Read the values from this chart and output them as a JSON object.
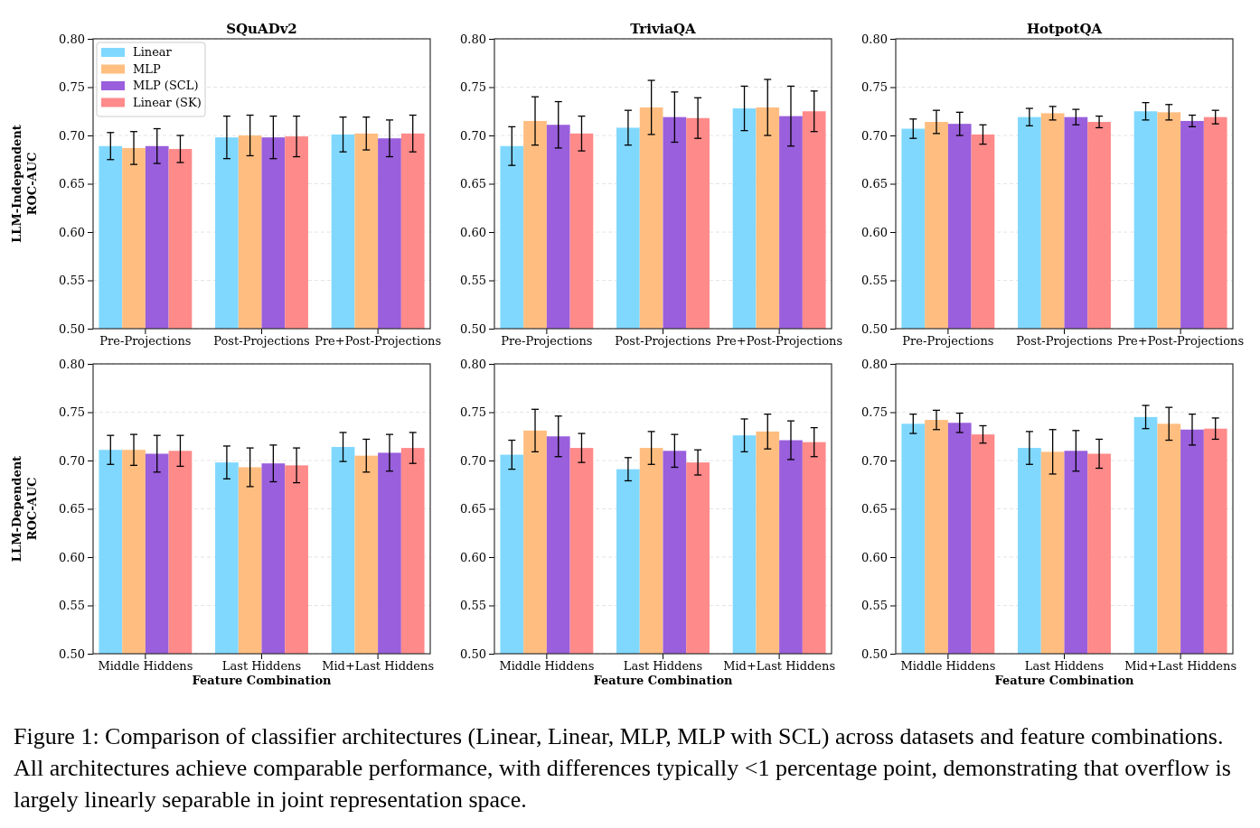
{
  "chart_data": [
    {
      "type": "bar",
      "title": "SQuADv2",
      "ylabel": "LLM-Independent\nROC-AUC",
      "categories": [
        "Pre-Projections",
        "Post-Projections",
        "Pre+Post-Projections"
      ],
      "ylim": [
        0.5,
        0.8
      ],
      "yticks": [
        {
          "value": 0.5,
          "label": "0.50"
        },
        {
          "value": 0.55,
          "label": "0.55"
        },
        {
          "value": 0.6,
          "label": "0.60"
        },
        {
          "value": 0.65,
          "label": "0.65"
        },
        {
          "value": 0.7,
          "label": "0.70"
        },
        {
          "value": 0.75,
          "label": "0.75"
        },
        {
          "value": 0.8,
          "label": "0.80"
        }
      ],
      "grid": "y",
      "legend": "top left",
      "series": [
        {
          "name": "Linear",
          "color": "#80d8ff",
          "values": [
            0.689,
            0.698,
            0.701
          ],
          "errors": [
            0.014,
            0.022,
            0.018
          ]
        },
        {
          "name": "MLP",
          "color": "#ffbe80",
          "values": [
            0.687,
            0.7,
            0.702
          ],
          "errors": [
            0.017,
            0.021,
            0.017
          ]
        },
        {
          "name": "MLP (SCL)",
          "color": "#9a5fdc",
          "values": [
            0.689,
            0.698,
            0.697
          ],
          "errors": [
            0.018,
            0.022,
            0.019
          ]
        },
        {
          "name": "Linear (SK)",
          "color": "#ff8a8a",
          "values": [
            0.686,
            0.699,
            0.702
          ],
          "errors": [
            0.014,
            0.021,
            0.019
          ]
        }
      ],
      "annotations": [
        "Figure 1: Comparison of classifier architectures (Linear, Linear, MLP, MLP with SCL) across datasets and feature combinations. All architectures achieve comparable performance, with differences typically <1 percentage point, demonstrating that overflow is largely linearly separable in joint representation space."
      ]
    },
    {
      "type": "bar",
      "title": "TriviaQA",
      "categories": [
        "Pre-Projections",
        "Post-Projections",
        "Pre+Post-Projections"
      ],
      "ylim": [
        0.5,
        0.8
      ],
      "yticks": [
        {
          "value": 0.5,
          "label": "0.50"
        },
        {
          "value": 0.55,
          "label": "0.55"
        },
        {
          "value": 0.6,
          "label": "0.60"
        },
        {
          "value": 0.65,
          "label": "0.65"
        },
        {
          "value": 0.7,
          "label": "0.70"
        },
        {
          "value": 0.75,
          "label": "0.75"
        },
        {
          "value": 0.8,
          "label": "0.80"
        }
      ],
      "grid": "y",
      "series": [
        {
          "color": "#80d8ff",
          "values": [
            0.689,
            0.708,
            0.728
          ],
          "errors": [
            0.02,
            0.018,
            0.023
          ]
        },
        {
          "color": "#ffbe80",
          "values": [
            0.715,
            0.729,
            0.729
          ],
          "errors": [
            0.025,
            0.028,
            0.029
          ]
        },
        {
          "color": "#9a5fdc",
          "values": [
            0.711,
            0.719,
            0.72
          ],
          "errors": [
            0.024,
            0.026,
            0.031
          ]
        },
        {
          "color": "#ff8a8a",
          "values": [
            0.702,
            0.718,
            0.725
          ],
          "errors": [
            0.018,
            0.021,
            0.021
          ]
        }
      ]
    },
    {
      "type": "bar",
      "title": "HotpotQA",
      "categories": [
        "Pre-Projections",
        "Post-Projections",
        "Pre+Post-Projections"
      ],
      "ylim": [
        0.5,
        0.8
      ],
      "yticks": [
        {
          "value": 0.5,
          "label": "0.50"
        },
        {
          "value": 0.55,
          "label": "0.55"
        },
        {
          "value": 0.6,
          "label": "0.60"
        },
        {
          "value": 0.65,
          "label": "0.65"
        },
        {
          "value": 0.7,
          "label": "0.70"
        },
        {
          "value": 0.75,
          "label": "0.75"
        },
        {
          "value": 0.8,
          "label": "0.80"
        }
      ],
      "grid": "y",
      "series": [
        {
          "color": "#80d8ff",
          "values": [
            0.707,
            0.719,
            0.725
          ],
          "errors": [
            0.01,
            0.009,
            0.009
          ]
        },
        {
          "color": "#ffbe80",
          "values": [
            0.714,
            0.723,
            0.724
          ],
          "errors": [
            0.012,
            0.007,
            0.008
          ]
        },
        {
          "color": "#9a5fdc",
          "values": [
            0.712,
            0.719,
            0.715
          ],
          "errors": [
            0.012,
            0.008,
            0.006
          ]
        },
        {
          "color": "#ff8a8a",
          "values": [
            0.701,
            0.714,
            0.719
          ],
          "errors": [
            0.01,
            0.006,
            0.007
          ]
        }
      ]
    },
    {
      "type": "bar",
      "ylabel": "LLM-Dependent\nROC-AUC",
      "xlabel": "Feature Combination",
      "categories": [
        "Middle Hiddens",
        "Last Hiddens",
        "Mid+Last Hiddens"
      ],
      "ylim": [
        0.5,
        0.8
      ],
      "yticks": [
        {
          "value": 0.5,
          "label": "0.50"
        },
        {
          "value": 0.55,
          "label": "0.55"
        },
        {
          "value": 0.6,
          "label": "0.60"
        },
        {
          "value": 0.65,
          "label": "0.65"
        },
        {
          "value": 0.7,
          "label": "0.70"
        },
        {
          "value": 0.75,
          "label": "0.75"
        },
        {
          "value": 0.8,
          "label": "0.80"
        }
      ],
      "grid": "y",
      "series": [
        {
          "color": "#80d8ff",
          "values": [
            0.711,
            0.698,
            0.714
          ],
          "errors": [
            0.015,
            0.017,
            0.015
          ]
        },
        {
          "color": "#ffbe80",
          "values": [
            0.711,
            0.693,
            0.705
          ],
          "errors": [
            0.016,
            0.02,
            0.017
          ]
        },
        {
          "color": "#9a5fdc",
          "values": [
            0.707,
            0.697,
            0.708
          ],
          "errors": [
            0.019,
            0.019,
            0.019
          ]
        },
        {
          "color": "#ff8a8a",
          "values": [
            0.71,
            0.695,
            0.713
          ],
          "errors": [
            0.016,
            0.018,
            0.016
          ]
        }
      ]
    },
    {
      "type": "bar",
      "xlabel": "Feature Combination",
      "categories": [
        "Middle Hiddens",
        "Last Hiddens",
        "Mid+Last Hiddens"
      ],
      "ylim": [
        0.5,
        0.8
      ],
      "yticks": [
        {
          "value": 0.5,
          "label": "0.50"
        },
        {
          "value": 0.55,
          "label": "0.55"
        },
        {
          "value": 0.6,
          "label": "0.60"
        },
        {
          "value": 0.65,
          "label": "0.65"
        },
        {
          "value": 0.7,
          "label": "0.70"
        },
        {
          "value": 0.75,
          "label": "0.75"
        },
        {
          "value": 0.8,
          "label": "0.80"
        }
      ],
      "grid": "y",
      "series": [
        {
          "color": "#80d8ff",
          "values": [
            0.706,
            0.691,
            0.726
          ],
          "errors": [
            0.015,
            0.012,
            0.017
          ]
        },
        {
          "color": "#ffbe80",
          "values": [
            0.731,
            0.713,
            0.73
          ],
          "errors": [
            0.022,
            0.017,
            0.018
          ]
        },
        {
          "color": "#9a5fdc",
          "values": [
            0.725,
            0.71,
            0.721
          ],
          "errors": [
            0.021,
            0.017,
            0.02
          ]
        },
        {
          "color": "#ff8a8a",
          "values": [
            0.713,
            0.698,
            0.719
          ],
          "errors": [
            0.015,
            0.013,
            0.015
          ]
        }
      ]
    },
    {
      "type": "bar",
      "xlabel": "Feature Combination",
      "categories": [
        "Middle Hiddens",
        "Last Hiddens",
        "Mid+Last Hiddens"
      ],
      "ylim": [
        0.5,
        0.8
      ],
      "yticks": [
        {
          "value": 0.5,
          "label": "0.50"
        },
        {
          "value": 0.55,
          "label": "0.55"
        },
        {
          "value": 0.6,
          "label": "0.60"
        },
        {
          "value": 0.65,
          "label": "0.65"
        },
        {
          "value": 0.7,
          "label": "0.70"
        },
        {
          "value": 0.75,
          "label": "0.75"
        },
        {
          "value": 0.8,
          "label": "0.80"
        }
      ],
      "grid": "y",
      "series": [
        {
          "color": "#80d8ff",
          "values": [
            0.738,
            0.713,
            0.745
          ],
          "errors": [
            0.01,
            0.017,
            0.012
          ]
        },
        {
          "color": "#ffbe80",
          "values": [
            0.742,
            0.709,
            0.738
          ],
          "errors": [
            0.01,
            0.023,
            0.017
          ]
        },
        {
          "color": "#9a5fdc",
          "values": [
            0.739,
            0.71,
            0.732
          ],
          "errors": [
            0.01,
            0.021,
            0.016
          ]
        },
        {
          "color": "#ff8a8a",
          "values": [
            0.727,
            0.707,
            0.733
          ],
          "errors": [
            0.009,
            0.015,
            0.011
          ]
        }
      ]
    }
  ]
}
